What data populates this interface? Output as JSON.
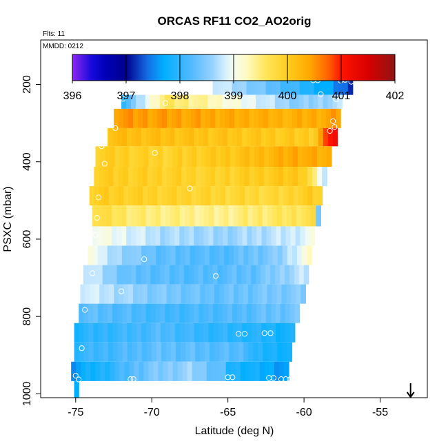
{
  "chart_data": {
    "type": "heatmap",
    "title": "ORCAS RF11 CO2_AO2orig",
    "flights_label": "Flts: 11",
    "date_label": "MMDD: 0212",
    "xlabel": "Latitude (deg N)",
    "ylabel": "PSXC (mbar)",
    "xlim": [
      -77.3,
      -51.9
    ],
    "ylim": [
      1010,
      85
    ],
    "x_ticks": [
      -75,
      -70,
      -65,
      -60,
      -55
    ],
    "x_tick_labels": [
      "-75",
      "-70",
      "-65",
      "-60",
      "-55"
    ],
    "y_ticks": [
      200,
      400,
      600,
      800,
      1000
    ],
    "y_tick_labels": [
      "200",
      "400",
      "600",
      "800",
      "1000"
    ],
    "colorbar": {
      "min": 396,
      "max": 402,
      "ticks": [
        396,
        397,
        398,
        399,
        400,
        401,
        402
      ],
      "tick_labels": [
        "396",
        "397",
        "398",
        "399",
        "400",
        "401",
        "402"
      ]
    },
    "bands": [
      {
        "p_top": 176,
        "p_bot": 227,
        "lat_start": -66.0,
        "lat_end": -56.8,
        "stops": [
          [
            0,
            398.9
          ],
          [
            0.2,
            398.6
          ],
          [
            0.55,
            398.1
          ],
          [
            0.85,
            397.6
          ],
          [
            1,
            397.2
          ]
        ]
      },
      {
        "p_top": 227,
        "p_bot": 263,
        "lat_start": -72.0,
        "lat_end": -57.5,
        "stops": [
          [
            0,
            398.0
          ],
          [
            0.2,
            399.6
          ],
          [
            0.35,
            399.4
          ],
          [
            0.55,
            399.0
          ],
          [
            0.8,
            398.5
          ],
          [
            1,
            398.7
          ]
        ]
      },
      {
        "p_top": 263,
        "p_bot": 313,
        "lat_start": -72.5,
        "lat_end": -57.6,
        "stops": [
          [
            0,
            400.5
          ],
          [
            0.4,
            400.4
          ],
          [
            0.75,
            400.3
          ],
          [
            0.95,
            400.4
          ],
          [
            1,
            400.5
          ]
        ]
      },
      {
        "p_top": 313,
        "p_bot": 360,
        "lat_start": -72.9,
        "lat_end": -57.8,
        "stops": [
          [
            0,
            400.2
          ],
          [
            0.5,
            400.1
          ],
          [
            0.9,
            400.0
          ],
          [
            0.97,
            401.1
          ],
          [
            1,
            401.2
          ]
        ]
      },
      {
        "p_top": 360,
        "p_bot": 413,
        "lat_start": -73.7,
        "lat_end": -58.2,
        "stops": [
          [
            0,
            400.0
          ],
          [
            0.3,
            399.9
          ],
          [
            0.6,
            400.1
          ],
          [
            0.85,
            400.4
          ],
          [
            1,
            400.3
          ]
        ]
      },
      {
        "p_top": 413,
        "p_bot": 463,
        "lat_start": -73.8,
        "lat_end": -58.5,
        "stops": [
          [
            0,
            400.0
          ],
          [
            0.5,
            399.9
          ],
          [
            0.9,
            400.1
          ],
          [
            1,
            398.6
          ]
        ]
      },
      {
        "p_top": 463,
        "p_bot": 513,
        "lat_start": -74.1,
        "lat_end": -58.8,
        "stops": [
          [
            0,
            400.0
          ],
          [
            0.4,
            399.9
          ],
          [
            0.8,
            399.8
          ],
          [
            0.95,
            400.0
          ],
          [
            1,
            399.9
          ]
        ]
      },
      {
        "p_top": 513,
        "p_bot": 567,
        "lat_start": -73.9,
        "lat_end": -58.9,
        "stops": [
          [
            0,
            399.8
          ],
          [
            0.2,
            399.5
          ],
          [
            0.55,
            399.4
          ],
          [
            0.85,
            399.6
          ],
          [
            0.97,
            399.7
          ],
          [
            1,
            397.8
          ]
        ]
      },
      {
        "p_top": 567,
        "p_bot": 617,
        "lat_start": -73.9,
        "lat_end": -59.3,
        "stops": [
          [
            0,
            399.1
          ],
          [
            0.3,
            398.7
          ],
          [
            0.6,
            398.6
          ],
          [
            0.9,
            398.8
          ],
          [
            1,
            399.0
          ]
        ]
      },
      {
        "p_top": 617,
        "p_bot": 667,
        "lat_start": -74.2,
        "lat_end": -59.5,
        "stops": [
          [
            0,
            399.3
          ],
          [
            0.06,
            398.8
          ],
          [
            0.3,
            398.3
          ],
          [
            0.6,
            398.2
          ],
          [
            0.85,
            398.5
          ],
          [
            1,
            399.2
          ]
        ]
      },
      {
        "p_top": 667,
        "p_bot": 717,
        "lat_start": -74.5,
        "lat_end": -59.7,
        "stops": [
          [
            0,
            398.9
          ],
          [
            0.2,
            398.3
          ],
          [
            0.5,
            398.2
          ],
          [
            0.75,
            398.3
          ],
          [
            1,
            398.8
          ]
        ]
      },
      {
        "p_top": 717,
        "p_bot": 767,
        "lat_start": -74.7,
        "lat_end": -59.9,
        "stops": [
          [
            0,
            398.9
          ],
          [
            0.3,
            398.5
          ],
          [
            0.6,
            398.3
          ],
          [
            1,
            398.5
          ]
        ]
      },
      {
        "p_top": 767,
        "p_bot": 817,
        "lat_start": -74.8,
        "lat_end": -60.3,
        "stops": [
          [
            0,
            398.3
          ],
          [
            0.4,
            398.1
          ],
          [
            0.7,
            398.2
          ],
          [
            1,
            398.4
          ]
        ]
      },
      {
        "p_top": 817,
        "p_bot": 867,
        "lat_start": -75.1,
        "lat_end": -60.6,
        "stops": [
          [
            0,
            397.9
          ],
          [
            0.4,
            398.2
          ],
          [
            0.6,
            398.0
          ],
          [
            0.85,
            397.9
          ],
          [
            1,
            397.8
          ]
        ]
      },
      {
        "p_top": 867,
        "p_bot": 917,
        "lat_start": -75.1,
        "lat_end": -60.8,
        "stops": [
          [
            0,
            398.0
          ],
          [
            0.4,
            398.3
          ],
          [
            0.8,
            398.2
          ],
          [
            0.82,
            397.9
          ],
          [
            1,
            397.8
          ]
        ]
      },
      {
        "p_top": 917,
        "p_bot": 967,
        "lat_start": -75.3,
        "lat_end": -61.0,
        "stops": [
          [
            0,
            397.6
          ],
          [
            0.15,
            397.9
          ],
          [
            0.35,
            398.4
          ],
          [
            0.55,
            398.6
          ],
          [
            0.7,
            398.2
          ],
          [
            0.72,
            397.9
          ],
          [
            1,
            397.6
          ]
        ]
      },
      {
        "p_top": 967,
        "p_bot": 1010,
        "lat_start": -75.1,
        "lat_end": -74.8,
        "stops": [
          [
            0,
            397.8
          ],
          [
            1,
            397.8
          ]
        ]
      }
    ],
    "markers": [
      {
        "lat": -65.0,
        "p": 183
      },
      {
        "lat": -59.4,
        "p": 189
      },
      {
        "lat": -59.1,
        "p": 189
      },
      {
        "lat": -57.6,
        "p": 190
      },
      {
        "lat": -57.3,
        "p": 188
      },
      {
        "lat": -56.8,
        "p": 183
      },
      {
        "lat": -56.9,
        "p": 193
      },
      {
        "lat": -58.9,
        "p": 225
      },
      {
        "lat": -71.9,
        "p": 237
      },
      {
        "lat": -69.1,
        "p": 248
      },
      {
        "lat": -57.9,
        "p": 238
      },
      {
        "lat": -58.1,
        "p": 295
      },
      {
        "lat": -58.3,
        "p": 320
      },
      {
        "lat": -58.0,
        "p": 310
      },
      {
        "lat": -72.4,
        "p": 313
      },
      {
        "lat": -73.3,
        "p": 360
      },
      {
        "lat": -69.8,
        "p": 377
      },
      {
        "lat": -73.1,
        "p": 405
      },
      {
        "lat": -67.5,
        "p": 469
      },
      {
        "lat": -73.5,
        "p": 492
      },
      {
        "lat": -73.6,
        "p": 545
      },
      {
        "lat": -73.7,
        "p": 589
      },
      {
        "lat": -70.5,
        "p": 652
      },
      {
        "lat": -73.9,
        "p": 688
      },
      {
        "lat": -65.8,
        "p": 695
      },
      {
        "lat": -72.0,
        "p": 735
      },
      {
        "lat": -74.4,
        "p": 783
      },
      {
        "lat": -63.9,
        "p": 845
      },
      {
        "lat": -64.3,
        "p": 845
      },
      {
        "lat": -62.6,
        "p": 843
      },
      {
        "lat": -62.2,
        "p": 843
      },
      {
        "lat": -74.6,
        "p": 882
      },
      {
        "lat": -75.0,
        "p": 953
      },
      {
        "lat": -74.8,
        "p": 963
      },
      {
        "lat": -71.4,
        "p": 962
      },
      {
        "lat": -71.2,
        "p": 962
      },
      {
        "lat": -65.0,
        "p": 957
      },
      {
        "lat": -64.7,
        "p": 957
      },
      {
        "lat": -62.3,
        "p": 959
      },
      {
        "lat": -62.0,
        "p": 959
      },
      {
        "lat": -61.5,
        "p": 962
      },
      {
        "lat": -61.2,
        "p": 962
      },
      {
        "lat": -60.9,
        "p": 962
      }
    ],
    "arrow": {
      "lat": -53.0
    }
  }
}
